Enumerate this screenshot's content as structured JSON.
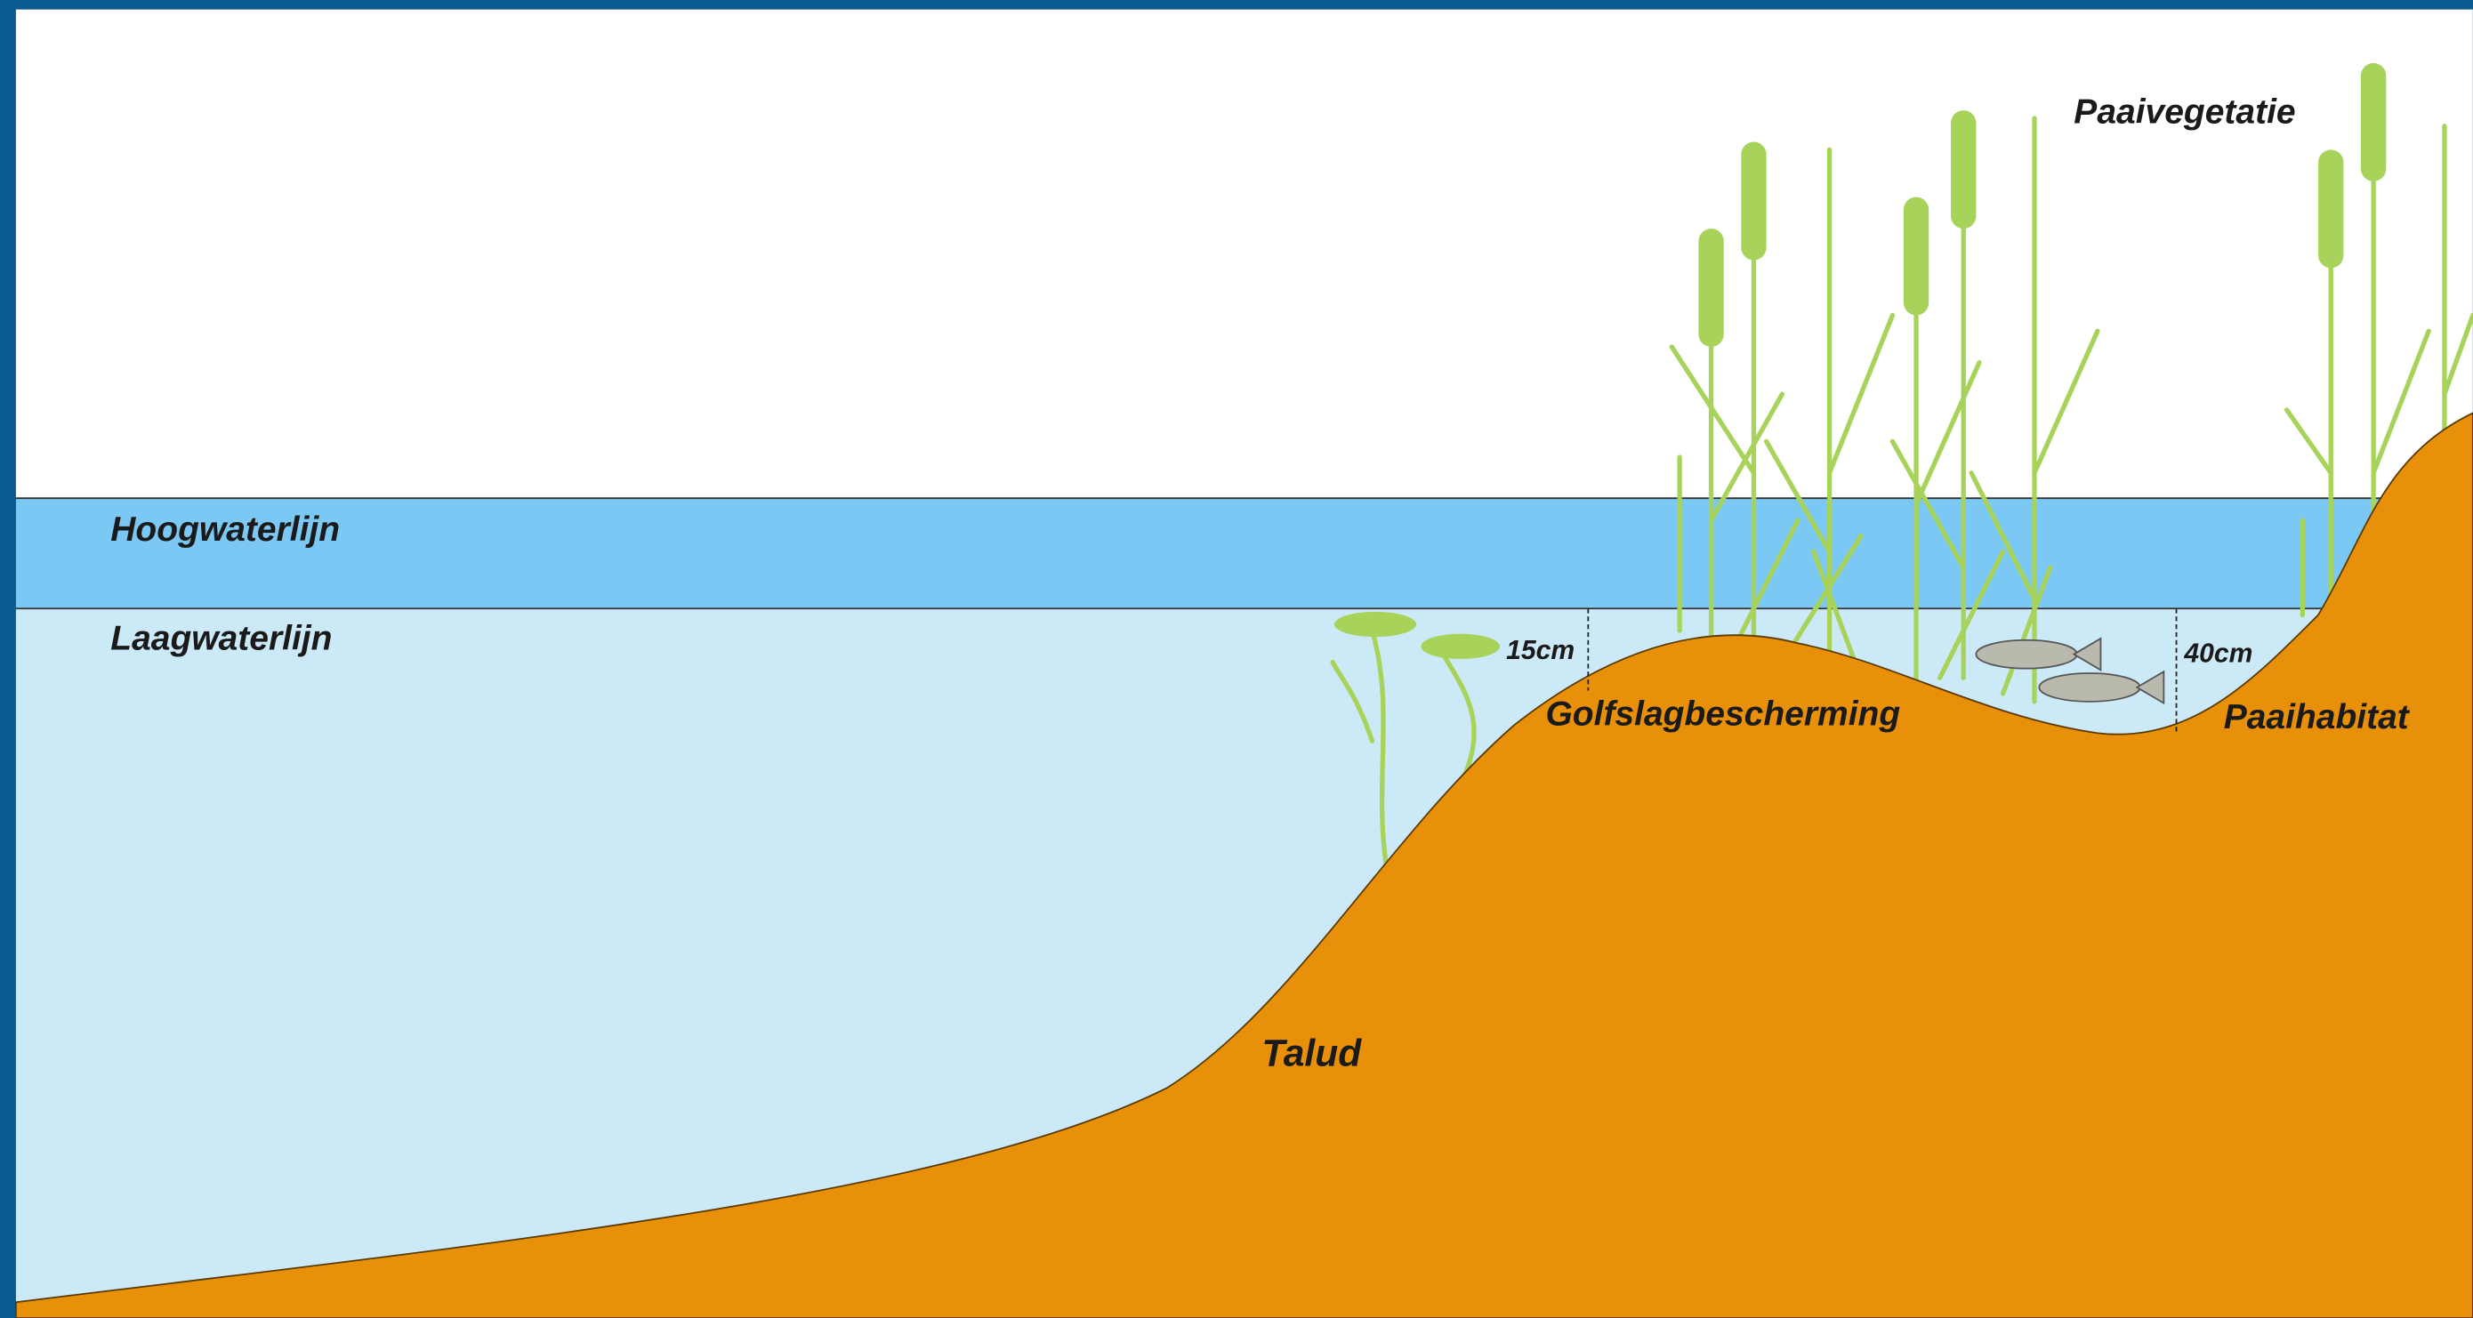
{
  "labels": {
    "high_water": "Hoogwaterlijn",
    "low_water": "Laagwaterlijn",
    "depth_1": "15cm",
    "wave_protection": "Golfslagbescherming",
    "depth_2": "40cm",
    "spawning_habitat": "Paaihabitat",
    "slope": "Talud",
    "spawning_vegetation": "Paaivegetatie"
  }
}
